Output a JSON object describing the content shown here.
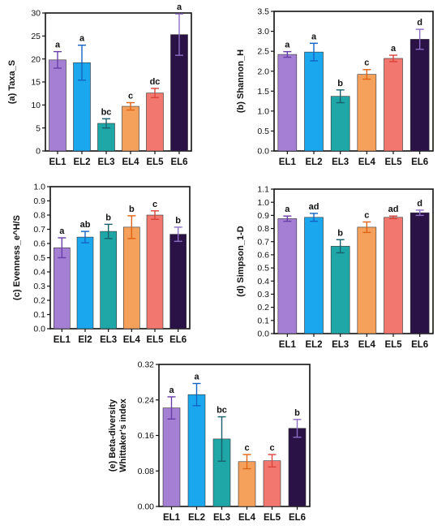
{
  "colors": {
    "bars": [
      "#a47fd3",
      "#1aa7ee",
      "#1ea7a6",
      "#f5a15b",
      "#f2776f",
      "#2a1246"
    ],
    "errors": [
      "#6a3ea8",
      "#1464c4",
      "#17606c",
      "#e06414",
      "#d9443c",
      "#8c6fc5"
    ],
    "axis": "#111111"
  },
  "chart_data": [
    {
      "id": "a",
      "type": "bar",
      "ylabel": "(a) Taxa_S",
      "categories": [
        "EL1",
        "EL2",
        "EL3",
        "EL4",
        "EL5",
        "EL6"
      ],
      "values": [
        19.8,
        19.2,
        6.0,
        9.7,
        12.6,
        25.3
      ],
      "errors": [
        1.8,
        3.8,
        1.0,
        0.8,
        1.0,
        4.5
      ],
      "letters": [
        "a",
        "a",
        "bc",
        "c",
        "dc",
        "a"
      ],
      "ylim": [
        0,
        30
      ],
      "yticks": [
        "0",
        "5",
        "10",
        "15",
        "20",
        "25",
        "30"
      ]
    },
    {
      "id": "b",
      "type": "bar",
      "ylabel": "(b) Shannon_H",
      "categories": [
        "EL1",
        "EL2",
        "EL3",
        "EL4",
        "EL5",
        "EL6"
      ],
      "values": [
        2.42,
        2.48,
        1.37,
        1.92,
        2.32,
        2.8
      ],
      "errors": [
        0.07,
        0.22,
        0.16,
        0.12,
        0.08,
        0.25
      ],
      "letters": [
        "a",
        "a",
        "b",
        "c",
        "a",
        "d"
      ],
      "ylim": [
        0,
        3.5
      ],
      "yticks": [
        "0.0",
        "0.5",
        "1.0",
        "1.5",
        "2.0",
        "2.5",
        "3.0",
        "3.5"
      ]
    },
    {
      "id": "c",
      "type": "bar",
      "ylabel": "(c) Evenness_e^H/S",
      "categories": [
        "EL1",
        "El2",
        "EL3",
        "EL4",
        "EL5",
        "EL6"
      ],
      "values": [
        0.57,
        0.645,
        0.685,
        0.715,
        0.8,
        0.665
      ],
      "errors": [
        0.07,
        0.04,
        0.05,
        0.08,
        0.03,
        0.05
      ],
      "letters": [
        "a",
        "ab",
        "b",
        "b",
        "c",
        "b"
      ],
      "ylim": [
        0,
        1.0
      ],
      "yticks": [
        "0.0",
        "0.1",
        "0.2",
        "0.3",
        "0.4",
        "0.5",
        "0.6",
        "0.7",
        "0.8",
        "0.9",
        "1.0"
      ]
    },
    {
      "id": "d",
      "type": "bar",
      "ylabel": "(d) Simpson_1-D",
      "categories": [
        "EL1",
        "EL2",
        "EL3",
        "EL4",
        "EL5",
        "EL6"
      ],
      "values": [
        0.875,
        0.885,
        0.665,
        0.81,
        0.885,
        0.92
      ],
      "errors": [
        0.02,
        0.03,
        0.05,
        0.04,
        0.01,
        0.02
      ],
      "letters": [
        "a",
        "ad",
        "b",
        "c",
        "ad",
        "d"
      ],
      "ylim": [
        0,
        1.1
      ],
      "yticks": [
        "0.0",
        "0.1",
        "0.2",
        "0.3",
        "0.4",
        "0.5",
        "0.6",
        "0.7",
        "0.8",
        "0.9",
        "1.0",
        "1.1"
      ]
    },
    {
      "id": "e",
      "type": "bar",
      "ylabel": "(e)   Beta-diversity",
      "ylabel2": "Whittaker's index",
      "categories": [
        "EL1",
        "EL2",
        "EL3",
        "EL4",
        "EL5",
        "EL6"
      ],
      "values": [
        0.222,
        0.252,
        0.152,
        0.101,
        0.103,
        0.176
      ],
      "errors": [
        0.025,
        0.025,
        0.05,
        0.016,
        0.014,
        0.02
      ],
      "letters": [
        "a",
        "a",
        "bc",
        "c",
        "c",
        "b"
      ],
      "ylim": [
        0,
        0.32
      ],
      "yticks": [
        "0.00",
        "0.08",
        "0.16",
        "0.24",
        "0.32"
      ]
    }
  ]
}
